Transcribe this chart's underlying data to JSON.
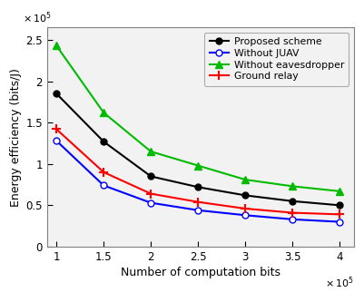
{
  "x": [
    100000.0,
    150000.0,
    200000.0,
    250000.0,
    300000.0,
    350000.0,
    400000.0
  ],
  "proposed": [
    185000.0,
    127000.0,
    85000.0,
    72000.0,
    62000.0,
    55000.0,
    50000.0
  ],
  "without_juav": [
    128000.0,
    74000.0,
    53000.0,
    44000.0,
    38000.0,
    33000.0,
    30000.0
  ],
  "without_eaves": [
    243000.0,
    162000.0,
    115000.0,
    98000.0,
    81000.0,
    73000.0,
    67000.0
  ],
  "ground_relay": [
    142000.0,
    90000.0,
    64000.0,
    54000.0,
    46000.0,
    41000.0,
    39000.0
  ],
  "proposed_color": "#000000",
  "juav_color": "#0000ff",
  "eaves_color": "#00bb00",
  "relay_color": "#ff0000",
  "xlabel": "Number of computation bits",
  "ylabel": "Energy efficiency (bits/J)",
  "xlim": [
    90000.0,
    415000.0
  ],
  "ylim": [
    0,
    265000.0
  ],
  "xticks": [
    100000.0,
    150000.0,
    200000.0,
    250000.0,
    300000.0,
    350000.0,
    400000.0
  ],
  "yticks": [
    0,
    50000.0,
    100000.0,
    150000.0,
    200000.0,
    250000.0
  ],
  "legend_labels": [
    "Proposed scheme",
    "Without JUAV",
    "Without eavesdropper",
    "Ground relay"
  ],
  "bg_color": "#f2f2f2",
  "spine_color": "#808080"
}
